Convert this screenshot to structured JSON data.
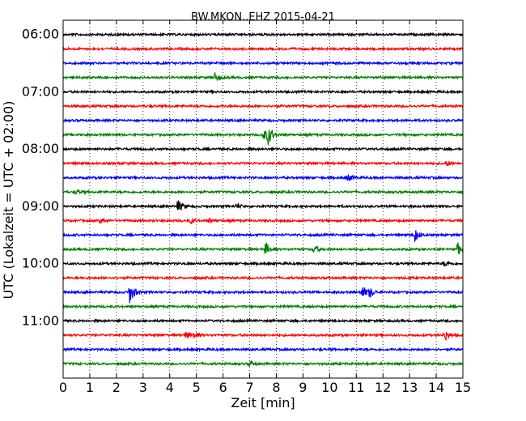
{
  "chart_data": {
    "type": "line",
    "title": "BW.MKON..EHZ 2015-04-21",
    "xlabel": "Zeit  [min]",
    "ylabel": "UTC (Lokalzeit = UTC + 02:00)",
    "xlim": [
      0,
      15
    ],
    "x_ticks": [
      "0",
      "1",
      "2",
      "3",
      "4",
      "5",
      "6",
      "7",
      "8",
      "9",
      "10",
      "11",
      "12",
      "13",
      "14",
      "15"
    ],
    "y_time_range": [
      "05:45",
      "12:00"
    ],
    "y_ticks": [
      {
        "time": "06:00",
        "label": "06:00"
      },
      {
        "time": "07:00",
        "label": "07:00"
      },
      {
        "time": "08:00",
        "label": "08:00"
      },
      {
        "time": "09:00",
        "label": "09:00"
      },
      {
        "time": "10:00",
        "label": "10:00"
      },
      {
        "time": "11:00",
        "label": "11:00"
      }
    ],
    "grid": "x-dotted",
    "trace_colors": [
      "#000000",
      "#ff0000",
      "#0000ff",
      "#008000"
    ],
    "traces": [
      {
        "start": "06:00",
        "color": "#000000",
        "events": []
      },
      {
        "start": "06:15",
        "color": "#ff0000",
        "events": []
      },
      {
        "start": "06:30",
        "color": "#0000ff",
        "events": []
      },
      {
        "start": "06:45",
        "color": "#008000",
        "events": [
          {
            "t": 5.7,
            "amp": 5
          }
        ]
      },
      {
        "start": "07:00",
        "color": "#000000",
        "events": []
      },
      {
        "start": "07:15",
        "color": "#ff0000",
        "events": []
      },
      {
        "start": "07:30",
        "color": "#0000ff",
        "events": []
      },
      {
        "start": "07:45",
        "color": "#008000",
        "events": [
          {
            "t": 7.5,
            "amp": 8
          },
          {
            "t": 7.7,
            "amp": 11
          }
        ]
      },
      {
        "start": "08:00",
        "color": "#000000",
        "events": []
      },
      {
        "start": "08:15",
        "color": "#ff0000",
        "events": [
          {
            "t": 14.4,
            "amp": 3
          }
        ]
      },
      {
        "start": "08:30",
        "color": "#0000ff",
        "events": [
          {
            "t": 10.7,
            "amp": 4
          }
        ]
      },
      {
        "start": "08:45",
        "color": "#008000",
        "events": [
          {
            "t": 0.5,
            "amp": 3
          }
        ]
      },
      {
        "start": "09:00",
        "color": "#000000",
        "events": [
          {
            "t": 4.3,
            "amp": 8
          },
          {
            "t": 6.5,
            "amp": 3
          }
        ]
      },
      {
        "start": "09:15",
        "color": "#ff0000",
        "events": [
          {
            "t": 1.4,
            "amp": 3
          },
          {
            "t": 4.8,
            "amp": 3
          },
          {
            "t": 5.5,
            "amp": 3
          }
        ]
      },
      {
        "start": "09:30",
        "color": "#0000ff",
        "events": [
          {
            "t": 13.2,
            "amp": 8
          }
        ]
      },
      {
        "start": "09:45",
        "color": "#008000",
        "events": [
          {
            "t": 7.6,
            "amp": 9
          },
          {
            "t": 9.4,
            "amp": 5
          },
          {
            "t": 14.8,
            "amp": 8
          }
        ]
      },
      {
        "start": "10:00",
        "color": "#000000",
        "events": [
          {
            "t": 14.3,
            "amp": 3
          }
        ]
      },
      {
        "start": "10:15",
        "color": "#ff0000",
        "events": []
      },
      {
        "start": "10:30",
        "color": "#0000ff",
        "events": [
          {
            "t": 2.5,
            "amp": 13
          },
          {
            "t": 11.2,
            "amp": 9
          },
          {
            "t": 11.5,
            "amp": 6
          }
        ]
      },
      {
        "start": "10:45",
        "color": "#008000",
        "events": []
      },
      {
        "start": "11:00",
        "color": "#000000",
        "events": []
      },
      {
        "start": "11:15",
        "color": "#ff0000",
        "events": [
          {
            "t": 4.6,
            "amp": 5
          },
          {
            "t": 4.9,
            "amp": 4
          },
          {
            "t": 14.3,
            "amp": 7
          }
        ]
      },
      {
        "start": "11:30",
        "color": "#0000ff",
        "events": []
      },
      {
        "start": "11:45",
        "color": "#008000",
        "events": [
          {
            "t": 7.0,
            "amp": 3
          }
        ]
      }
    ]
  }
}
